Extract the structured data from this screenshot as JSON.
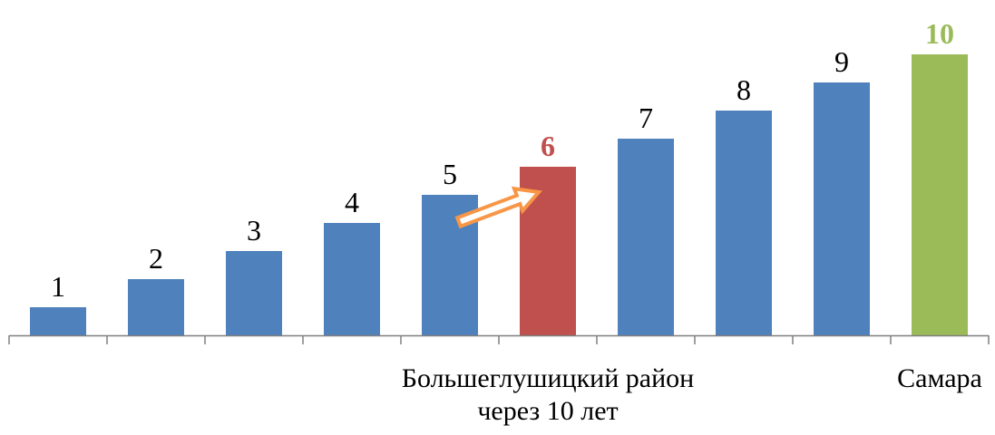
{
  "chart_data": {
    "type": "bar",
    "categories": [
      "",
      "",
      "",
      "",
      "",
      "",
      "",
      "",
      "",
      ""
    ],
    "values": [
      1,
      2,
      3,
      4,
      5,
      6,
      7,
      8,
      9,
      10
    ],
    "data_labels": [
      "1",
      "2",
      "3",
      "4",
      "5",
      "6",
      "7",
      "8",
      "9",
      "10"
    ],
    "bar_colors": [
      "#4f81bd",
      "#4f81bd",
      "#4f81bd",
      "#4f81bd",
      "#4f81bd",
      "#c0504d",
      "#4f81bd",
      "#4f81bd",
      "#4f81bd",
      "#9bbb59"
    ],
    "label_colors": [
      "#000000",
      "#000000",
      "#000000",
      "#000000",
      "#000000",
      "#c0504d",
      "#000000",
      "#000000",
      "#000000",
      "#9bbb59"
    ],
    "label_bold": [
      false,
      false,
      false,
      false,
      false,
      true,
      false,
      false,
      false,
      true
    ],
    "annotations": [
      {
        "text_lines": [
          "Большеглушицкий район",
          "через 10 лет"
        ],
        "category_index": 5
      },
      {
        "text_lines": [
          "Самара"
        ],
        "category_index": 9
      }
    ],
    "arrow": {
      "from_index": 4,
      "to_index": 5,
      "color": "#f79646",
      "style": "outlined"
    },
    "ylim": [
      0,
      10
    ],
    "title": "",
    "xlabel": "",
    "ylabel": "",
    "grid": false,
    "legend": "none"
  }
}
